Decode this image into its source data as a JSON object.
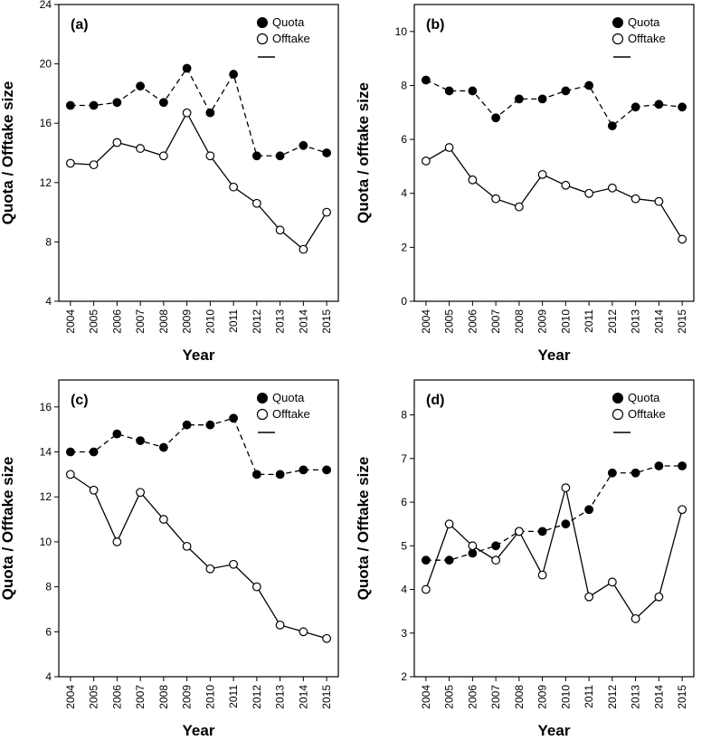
{
  "chart_data": [
    {
      "type": "line",
      "panel_label": "(a)",
      "xlabel": "Year",
      "ylabel": "Quota / Offtake size",
      "ylim": [
        4,
        24
      ],
      "yticks": [
        4,
        8,
        12,
        16,
        20,
        24
      ],
      "categories": [
        "2004",
        "2005",
        "2006",
        "2007",
        "2008",
        "2009",
        "2010",
        "2011",
        "2012",
        "2013",
        "2014",
        "2015"
      ],
      "legend": {
        "position": "top-right",
        "entries": [
          "Quota",
          "Offtake"
        ]
      },
      "series": [
        {
          "name": "Quota",
          "style": "dashed",
          "marker": "filled",
          "values": [
            17.2,
            17.2,
            17.4,
            18.5,
            17.4,
            19.7,
            16.7,
            19.3,
            13.8,
            13.8,
            14.5,
            14.0
          ]
        },
        {
          "name": "Offtake",
          "style": "solid",
          "marker": "open",
          "values": [
            13.3,
            13.2,
            14.7,
            14.3,
            13.8,
            16.7,
            13.8,
            11.7,
            10.6,
            8.8,
            7.5,
            10.0
          ]
        }
      ]
    },
    {
      "type": "line",
      "panel_label": "(b)",
      "xlabel": "Year",
      "ylabel": "Quota / offtake size",
      "ylim": [
        0,
        11
      ],
      "yticks": [
        0,
        2,
        4,
        6,
        8,
        10
      ],
      "categories": [
        "2004",
        "2005",
        "2006",
        "2007",
        "2008",
        "2009",
        "2010",
        "2011",
        "2012",
        "2013",
        "2014",
        "2015"
      ],
      "legend": {
        "position": "top-right",
        "entries": [
          "Quota",
          "Offtake"
        ]
      },
      "series": [
        {
          "name": "Quota",
          "style": "dashed",
          "marker": "filled",
          "values": [
            8.2,
            7.8,
            7.8,
            6.8,
            7.5,
            7.5,
            7.8,
            8.0,
            6.5,
            7.2,
            7.3,
            7.2
          ]
        },
        {
          "name": "Offtake",
          "style": "solid",
          "marker": "open",
          "values": [
            5.2,
            5.7,
            4.5,
            3.8,
            3.5,
            4.7,
            4.3,
            4.0,
            4.2,
            3.8,
            3.7,
            2.3
          ]
        }
      ]
    },
    {
      "type": "line",
      "panel_label": "(c)",
      "xlabel": "Year",
      "ylabel": "Quota / Offtake size",
      "ylim": [
        4,
        17.2
      ],
      "yticks": [
        4,
        6,
        8,
        10,
        12,
        14,
        16
      ],
      "categories": [
        "2004",
        "2005",
        "2006",
        "2007",
        "2008",
        "2009",
        "2010",
        "2011",
        "2012",
        "2013",
        "2014",
        "2015"
      ],
      "legend": {
        "position": "top-right",
        "entries": [
          "Quota",
          "Offtake"
        ]
      },
      "series": [
        {
          "name": "Quota",
          "style": "dashed",
          "marker": "filled",
          "values": [
            14.0,
            14.0,
            14.8,
            14.5,
            14.2,
            15.2,
            15.2,
            15.5,
            13.0,
            13.0,
            13.2,
            13.2
          ]
        },
        {
          "name": "Offtake",
          "style": "solid",
          "marker": "open",
          "values": [
            13.0,
            12.3,
            10.0,
            12.2,
            11.0,
            9.8,
            8.8,
            9.0,
            8.0,
            6.3,
            6.0,
            5.7
          ]
        }
      ]
    },
    {
      "type": "line",
      "panel_label": "(d)",
      "xlabel": "Year",
      "ylabel": "Quota / Offtake size",
      "ylim": [
        2,
        8.8
      ],
      "yticks": [
        2,
        3,
        4,
        5,
        6,
        7,
        8
      ],
      "categories": [
        "2004",
        "2005",
        "2006",
        "2007",
        "2008",
        "2009",
        "2010",
        "2011",
        "2012",
        "2013",
        "2014",
        "2015"
      ],
      "legend": {
        "position": "top-right",
        "entries": [
          "Quota",
          "Offtake"
        ]
      },
      "series": [
        {
          "name": "Quota",
          "style": "dashed",
          "marker": "filled",
          "values": [
            4.67,
            4.67,
            4.83,
            5.0,
            5.33,
            5.33,
            5.5,
            5.83,
            6.67,
            6.67,
            6.83,
            6.83
          ]
        },
        {
          "name": "Offtake",
          "style": "solid",
          "marker": "open",
          "values": [
            4.0,
            5.5,
            5.0,
            4.67,
            5.33,
            4.33,
            6.33,
            3.83,
            4.17,
            3.33,
            3.83,
            5.83
          ]
        }
      ]
    }
  ]
}
